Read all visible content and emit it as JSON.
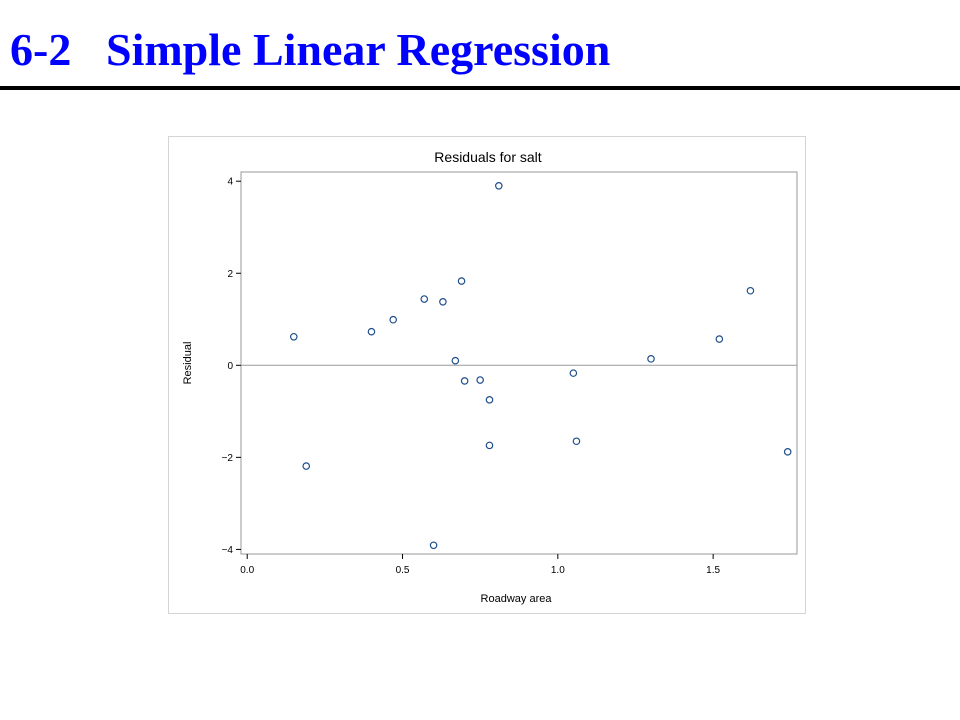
{
  "slide": {
    "number": "6-2",
    "title": "Simple Linear Regression",
    "title_color": "#0000FF"
  },
  "chart_data": {
    "type": "scatter",
    "title": "Residuals for salt",
    "xlabel": "Roadway area",
    "ylabel": "Residual",
    "xlim": [
      -0.02,
      1.77
    ],
    "ylim": [
      -4.1,
      4.2
    ],
    "xticks": [
      0.0,
      0.5,
      1.0,
      1.5
    ],
    "xtick_labels": [
      "0.0",
      "0.5",
      "1.0",
      "1.5"
    ],
    "yticks": [
      -4,
      -2,
      0,
      2,
      4
    ],
    "ytick_labels": [
      "−4",
      "−2",
      "0",
      "2",
      "4"
    ],
    "reference_line_y": 0,
    "grid": false,
    "marker_color": "#1F4E8C",
    "points": [
      {
        "x": 0.15,
        "y": 0.62
      },
      {
        "x": 0.19,
        "y": -2.19
      },
      {
        "x": 0.4,
        "y": 0.73
      },
      {
        "x": 0.47,
        "y": 0.99
      },
      {
        "x": 0.57,
        "y": 1.44
      },
      {
        "x": 0.6,
        "y": -3.91
      },
      {
        "x": 0.63,
        "y": 1.38
      },
      {
        "x": 0.67,
        "y": 0.1
      },
      {
        "x": 0.69,
        "y": 1.83
      },
      {
        "x": 0.7,
        "y": -0.34
      },
      {
        "x": 0.75,
        "y": -0.32
      },
      {
        "x": 0.78,
        "y": -0.75
      },
      {
        "x": 0.78,
        "y": -1.74
      },
      {
        "x": 0.81,
        "y": 3.9
      },
      {
        "x": 1.05,
        "y": -0.17
      },
      {
        "x": 1.06,
        "y": -1.65
      },
      {
        "x": 1.3,
        "y": 0.14
      },
      {
        "x": 1.52,
        "y": 0.57
      },
      {
        "x": 1.62,
        "y": 1.62
      },
      {
        "x": 1.74,
        "y": -1.88
      }
    ]
  }
}
